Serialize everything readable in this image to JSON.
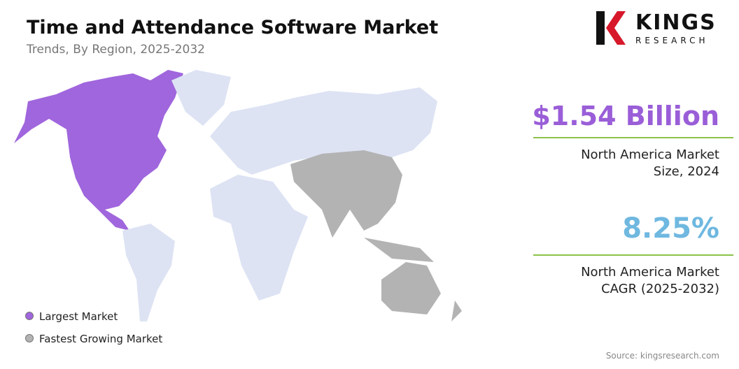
{
  "header": {
    "title": "Time and Attendance Software Market",
    "subtitle": "Trends, By Region, 2025-2032"
  },
  "logo": {
    "name": "KINGS",
    "tagline": "RESEARCH"
  },
  "stats": [
    {
      "value": "$1.54 Billion",
      "label_lines": [
        "North America Market",
        "Size, 2024"
      ]
    },
    {
      "value": "8.25%",
      "label_lines": [
        "North America Market",
        "CAGR (2025-2032)"
      ]
    }
  ],
  "legend": [
    "Largest Market",
    "Fastest Growing Market"
  ],
  "source": "Source: kingsresearch.com"
}
